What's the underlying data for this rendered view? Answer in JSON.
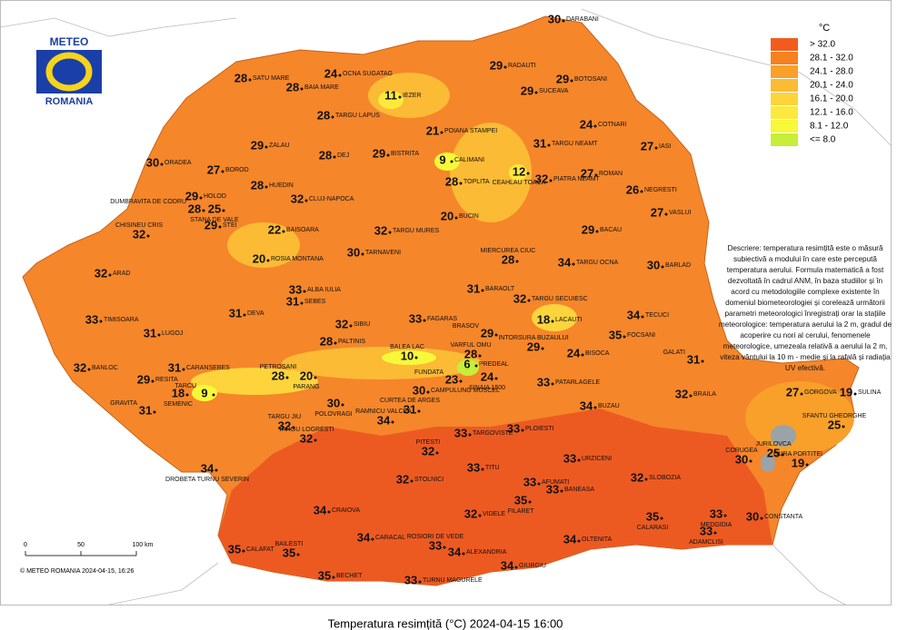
{
  "logo": {
    "top": "METEO",
    "bottom": "ROMANIA"
  },
  "legend": {
    "title": "°C",
    "items": [
      {
        "label": "> 32.0",
        "color": "#f35b1c"
      },
      {
        "label": "28.1 - 32.0",
        "color": "#f5821f"
      },
      {
        "label": "24.1 - 28.0",
        "color": "#f8a02a"
      },
      {
        "label": "20.1 - 24.0",
        "color": "#fbbb34"
      },
      {
        "label": "16.1 - 20.0",
        "color": "#fdd43b"
      },
      {
        "label": "12.1 - 16.0",
        "color": "#fde93d"
      },
      {
        "label": "8.1 - 12.0",
        "color": "#f8f83a"
      },
      {
        "label": "<= 8.0",
        "color": "#c6ee3a"
      }
    ]
  },
  "description": "Descriere: temperatura resimțită este o măsură subiectivă a modului în care este percepută temperatura aerului. Formula matematică a fost dezvoltată în cadrul ANM, în baza studiilor și în acord cu metodologiile complexe existente în domeniul biometeorologiei și corelează următorii parametri meteorologici înregistrați orar la stațiile meteorologice: temperatura aerului la 2 m, gradul de acoperire cu nori al cerului, fenomenele meteorologice, umezeala relativă a aerului la 2 m, viteza vântului la 10 m - medie și la rafală și radiația UV efectivă.",
  "scale": {
    "labels": [
      "0",
      "50",
      "100 km"
    ]
  },
  "copyright": "© METEO ROMANIA 2024-04-15, 16:26",
  "caption": "Temperatura resimțită (°C) 2024-04-15 16:00",
  "stations": [
    {
      "name": "DARABANI",
      "value": 30
    },
    {
      "name": "OCNA SUGATAG",
      "value": 24
    },
    {
      "name": "SATU MARE",
      "value": 28
    },
    {
      "name": "BAIA MARE",
      "value": 28
    },
    {
      "name": "RADAUTI",
      "value": 29
    },
    {
      "name": "BOTOSANI",
      "value": 29
    },
    {
      "name": "IEZER",
      "value": 11
    },
    {
      "name": "SUCEAVA",
      "value": 29
    },
    {
      "name": "TARGU LAPUS",
      "value": 28
    },
    {
      "name": "POIANA STAMPEI",
      "value": 21
    },
    {
      "name": "COTNARI",
      "value": 24
    },
    {
      "name": "TARGU NEAMT",
      "value": 31
    },
    {
      "name": "IASI",
      "value": 27
    },
    {
      "name": "ZALAU",
      "value": 29
    },
    {
      "name": "DEJ",
      "value": 28
    },
    {
      "name": "BISTRITA",
      "value": 29
    },
    {
      "name": "CALIMANI",
      "value": 9
    },
    {
      "name": "ORADEA",
      "value": 30
    },
    {
      "name": "BOROD",
      "value": 27
    },
    {
      "name": "CEAHLAU TOACA",
      "value": 12
    },
    {
      "name": "ROMAN",
      "value": 27
    },
    {
      "name": "PIATRA NEAMT",
      "value": 32
    },
    {
      "name": "HUEDIN",
      "value": 28
    },
    {
      "name": "TOPLITA",
      "value": 28
    },
    {
      "name": "NEGRESTI",
      "value": 26
    },
    {
      "name": "HOLOD",
      "value": 29
    },
    {
      "name": "CLUJ-NAPOCA",
      "value": 32
    },
    {
      "name": "CHISINEU CRIS",
      "value": 32
    },
    {
      "name": "DUMBRAVITA DE CODRU",
      "value": 28
    },
    {
      "name": "STANA DE VALE",
      "value": 25
    },
    {
      "name": "STEI",
      "value": 29
    },
    {
      "name": "VASLUI",
      "value": 27
    },
    {
      "name": "BUCIN",
      "value": 20
    },
    {
      "name": "BAISOARA",
      "value": 22
    },
    {
      "name": "TARGU MURES",
      "value": 32
    },
    {
      "name": "BACAU",
      "value": 29
    },
    {
      "name": "ROSIA MONTANA",
      "value": 20
    },
    {
      "name": "TARNAVENI",
      "value": 30
    },
    {
      "name": "MIERCUREA CIUC",
      "value": 28
    },
    {
      "name": "TARGU OCNA",
      "value": 34
    },
    {
      "name": "BARLAD",
      "value": 30
    },
    {
      "name": "ARAD",
      "value": 32
    },
    {
      "name": "ALBA IULIA",
      "value": 33
    },
    {
      "name": "SEBES",
      "value": 31
    },
    {
      "name": "BARAOLT",
      "value": 31
    },
    {
      "name": "TARGU SECUIESC",
      "value": 32
    },
    {
      "name": "DEVA",
      "value": 31
    },
    {
      "name": "TIMISOARA",
      "value": 33
    },
    {
      "name": "SIBIU",
      "value": 32
    },
    {
      "name": "FAGARAS",
      "value": 33
    },
    {
      "name": "LACAUTI",
      "value": 18
    },
    {
      "name": "TECUCI",
      "value": 34
    },
    {
      "name": "LUGOJ",
      "value": 31
    },
    {
      "name": "PALTINIS",
      "value": 28
    },
    {
      "name": "BRASOV",
      "value": 29
    },
    {
      "name": "INTORSURA BUZAULUI",
      "value": 29
    },
    {
      "name": "FOCSANI",
      "value": 35
    },
    {
      "name": "BALEA LAC",
      "value": 10
    },
    {
      "name": "VARFUL OMU",
      "value": 28
    },
    {
      "name": "BISOCA",
      "value": 24
    },
    {
      "name": "GALATI",
      "value": 31
    },
    {
      "name": "BANLOC",
      "value": 32
    },
    {
      "name": "CARANSEBES",
      "value": 31
    },
    {
      "name": "PREDEAL",
      "value": 6
    },
    {
      "name": "RESITA",
      "value": 29
    },
    {
      "name": "PETROSANI",
      "value": 28
    },
    {
      "name": "PARANG",
      "value": 20
    },
    {
      "name": "FUNDATA",
      "value": 23
    },
    {
      "name": "SINAIA 1500",
      "value": 24
    },
    {
      "name": "PATARLAGELE",
      "value": 33
    },
    {
      "name": "BRAILA",
      "value": 32
    },
    {
      "name": "GORGOVA",
      "value": 27
    },
    {
      "name": "SULINA",
      "value": 19
    },
    {
      "name": "SEMENIC",
      "value": 18
    },
    {
      "name": "TARCU",
      "value": 9
    },
    {
      "name": "CAMPULUNG MUSCEL",
      "value": 30
    },
    {
      "name": "POLOVRAGI",
      "value": 30
    },
    {
      "name": "BUZAU",
      "value": 34
    },
    {
      "name": "GRAVITA",
      "value": 31
    },
    {
      "name": "CURTEA DE ARGES",
      "value": 31
    },
    {
      "name": "RAMNICU VALCEA",
      "value": 34
    },
    {
      "name": "TARGU JIU",
      "value": 32
    },
    {
      "name": "SFANTU GHEORGHE",
      "value": 25
    },
    {
      "name": "TARGU LOGRESTI",
      "value": 32
    },
    {
      "name": "TARGOVISTE",
      "value": 33
    },
    {
      "name": "PLOIESTI",
      "value": 33
    },
    {
      "name": "DROBETA TURNU SEVERIN",
      "value": 34
    },
    {
      "name": "PITESTI",
      "value": 32
    },
    {
      "name": "URZICENI",
      "value": 33
    },
    {
      "name": "CORUGEA",
      "value": 30
    },
    {
      "name": "JURILOVCA",
      "value": 25
    },
    {
      "name": "GURA PORTITEI",
      "value": 19
    },
    {
      "name": "TITU",
      "value": 33
    },
    {
      "name": "STOLNICI",
      "value": 32
    },
    {
      "name": "SLOBOZIA",
      "value": 32
    },
    {
      "name": "AFUMATI",
      "value": 33
    },
    {
      "name": "BANEASA",
      "value": 33
    },
    {
      "name": "FILARET",
      "value": 35
    },
    {
      "name": "CRAIOVA",
      "value": 34
    },
    {
      "name": "VIDELE",
      "value": 32
    },
    {
      "name": "CALARASI",
      "value": 35
    },
    {
      "name": "MEDGIDIA",
      "value": 33
    },
    {
      "name": "CONSTANTA",
      "value": 30
    },
    {
      "name": "ROSIORI DE VEDE",
      "value": 33
    },
    {
      "name": "CARACAL",
      "value": 34
    },
    {
      "name": "ALEXANDRIA",
      "value": 34
    },
    {
      "name": "OLTENITA",
      "value": 34
    },
    {
      "name": "ADAMCLISI",
      "value": 33
    },
    {
      "name": "CALAFAT",
      "value": 35
    },
    {
      "name": "BAILESTI",
      "value": 35
    },
    {
      "name": "GIURGIU",
      "value": 34
    },
    {
      "name": "BECHET",
      "value": 35
    },
    {
      "name": "TURNU MAGURELE",
      "value": 33
    }
  ]
}
